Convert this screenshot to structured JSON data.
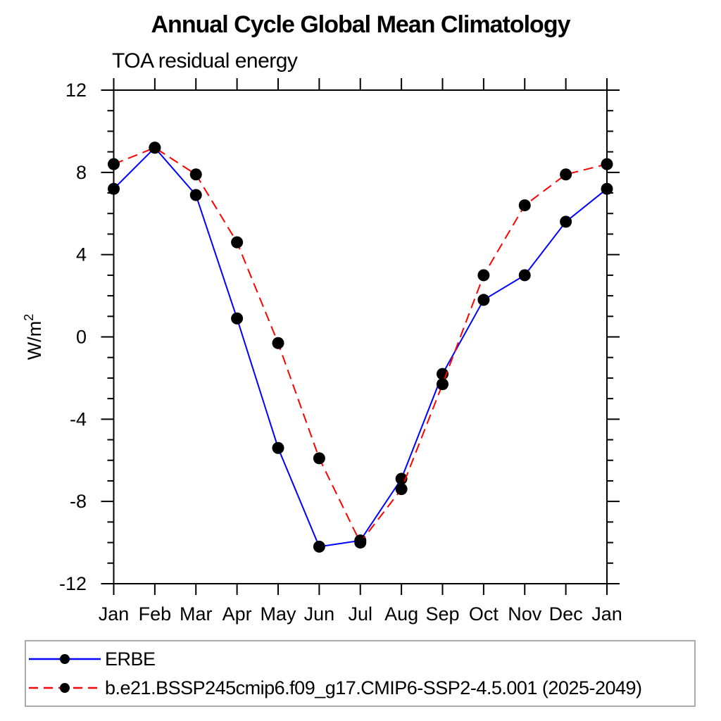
{
  "chart_data": {
    "type": "line",
    "title": "Annual Cycle Global Mean Climatology",
    "subtitle": "TOA residual energy",
    "ylabel_base": "W/m",
    "ylabel_exponent": "2",
    "x_categories": [
      "Jan",
      "Feb",
      "Mar",
      "Apr",
      "May",
      "Jun",
      "Jul",
      "Aug",
      "Sep",
      "Oct",
      "Nov",
      "Dec",
      "Jan"
    ],
    "ylim": [
      -12,
      12
    ],
    "ytick_values": [
      -12,
      -8,
      -4,
      0,
      4,
      8,
      12
    ],
    "ytick_labels": [
      "-12",
      "-8",
      "-4",
      "0",
      "4",
      "8",
      "12"
    ],
    "ytick_minor_step": 1,
    "grid": false,
    "legend_position": "bottom-left",
    "series": [
      {
        "name": "ERBE",
        "color": "#0000ff",
        "line_style": "solid",
        "marker": "filled-circle",
        "marker_color": "#000000",
        "values": [
          7.2,
          9.2,
          6.9,
          0.9,
          -5.4,
          -10.2,
          -9.9,
          -6.9,
          -1.8,
          1.8,
          3.0,
          5.6,
          7.2
        ]
      },
      {
        "name": "b.e21.BSSP245cmip6.f09_g17.CMIP6-SSP2-4.5.001 (2025-2049)",
        "color": "#ff0000",
        "line_style": "dashed",
        "marker": "filled-circle",
        "marker_color": "#000000",
        "values": [
          8.4,
          9.2,
          7.9,
          4.6,
          -0.3,
          -5.9,
          -10.0,
          -7.4,
          -2.3,
          3.0,
          6.4,
          7.9,
          8.4
        ]
      }
    ],
    "colors": {
      "axis": "#000000",
      "text": "#000000",
      "legend_border": "#ababab",
      "background": "#ffffff"
    }
  }
}
